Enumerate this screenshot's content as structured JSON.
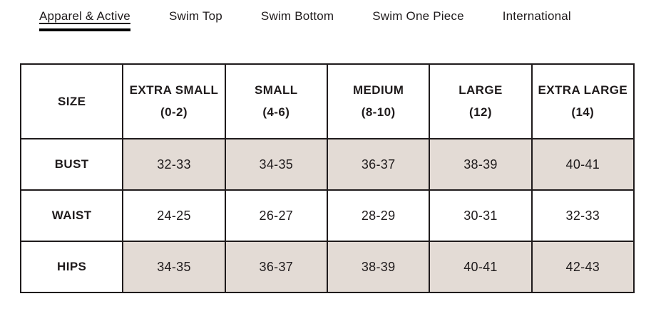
{
  "tabs": {
    "items": [
      {
        "label": "Apparel & Active",
        "active": true
      },
      {
        "label": "Swim Top",
        "active": false
      },
      {
        "label": "Swim Bottom",
        "active": false
      },
      {
        "label": "Swim One Piece",
        "active": false
      },
      {
        "label": "International",
        "active": false
      }
    ]
  },
  "size_chart": {
    "header": {
      "size_label": "SIZE",
      "columns": [
        {
          "name": "EXTRA SMALL",
          "range": "(0-2)"
        },
        {
          "name": "SMALL",
          "range": "(4-6)"
        },
        {
          "name": "MEDIUM",
          "range": "(8-10)"
        },
        {
          "name": "LARGE",
          "range": "(12)"
        },
        {
          "name": "EXTRA LARGE",
          "range": "(14)"
        }
      ]
    },
    "rows": [
      {
        "label": "BUST",
        "shaded": true,
        "values": [
          "32-33",
          "34-35",
          "36-37",
          "38-39",
          "40-41"
        ]
      },
      {
        "label": "WAIST",
        "shaded": false,
        "values": [
          "24-25",
          "26-27",
          "28-29",
          "30-31",
          "32-33"
        ]
      },
      {
        "label": "HIPS",
        "shaded": true,
        "values": [
          "34-35",
          "36-37",
          "38-39",
          "40-41",
          "42-43"
        ]
      }
    ]
  },
  "colors": {
    "shaded_cell": "#e3dbd5",
    "border": "#1f1b1c",
    "text": "#1f1b1c",
    "active_tab_indicator": "#000000",
    "background": "#ffffff"
  }
}
